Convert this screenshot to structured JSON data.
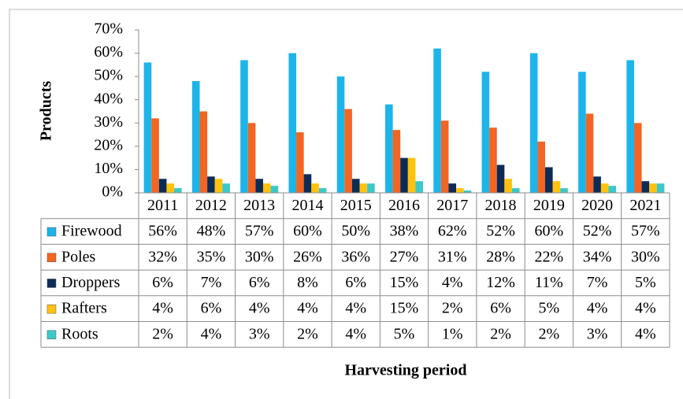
{
  "chart_data": {
    "type": "bar",
    "ylabel": "Products",
    "xlabel": "Harvesting period",
    "categories": [
      "2011",
      "2012",
      "2013",
      "2014",
      "2015",
      "2016",
      "2017",
      "2018",
      "2019",
      "2020",
      "2021"
    ],
    "series": [
      {
        "name": "Firewood",
        "color": "#1cb5ea",
        "values": [
          56,
          48,
          57,
          60,
          50,
          38,
          62,
          52,
          60,
          52,
          57
        ],
        "value_labels": [
          "56%",
          "48%",
          "57%",
          "60%",
          "50%",
          "38%",
          "62%",
          "52%",
          "60%",
          "52%",
          "57%"
        ]
      },
      {
        "name": "Poles",
        "color": "#f26522",
        "values": [
          32,
          35,
          30,
          26,
          36,
          27,
          31,
          28,
          22,
          34,
          30
        ],
        "value_labels": [
          "32%",
          "35%",
          "30%",
          "26%",
          "36%",
          "27%",
          "31%",
          "28%",
          "22%",
          "34%",
          "30%"
        ]
      },
      {
        "name": "Droppers",
        "color": "#0c2c55",
        "values": [
          6,
          7,
          6,
          8,
          6,
          15,
          4,
          12,
          11,
          7,
          5
        ],
        "value_labels": [
          "6%",
          "7%",
          "6%",
          "8%",
          "6%",
          "15%",
          "4%",
          "12%",
          "11%",
          "7%",
          "5%"
        ]
      },
      {
        "name": "Rafters",
        "color": "#ffc20e",
        "values": [
          4,
          6,
          4,
          4,
          4,
          15,
          2,
          6,
          5,
          4,
          4
        ],
        "value_labels": [
          "4%",
          "6%",
          "4%",
          "4%",
          "4%",
          "15%",
          "2%",
          "6%",
          "5%",
          "4%",
          "4%"
        ]
      },
      {
        "name": "Roots",
        "color": "#3cc8c8",
        "values": [
          2,
          4,
          3,
          2,
          4,
          5,
          1,
          2,
          2,
          3,
          4
        ],
        "value_labels": [
          "2%",
          "4%",
          "3%",
          "2%",
          "4%",
          "5%",
          "1%",
          "2%",
          "2%",
          "3%",
          "4%"
        ]
      }
    ],
    "ylim": [
      0,
      70
    ],
    "yticks": [
      {
        "value": 0,
        "label": "0%"
      },
      {
        "value": 10,
        "label": "10%"
      },
      {
        "value": 20,
        "label": "20%"
      },
      {
        "value": 30,
        "label": "30%"
      },
      {
        "value": 40,
        "label": "40%"
      },
      {
        "value": 50,
        "label": "50%"
      },
      {
        "value": 60,
        "label": "60%"
      },
      {
        "value": 70,
        "label": "70%"
      }
    ],
    "grid": false
  }
}
